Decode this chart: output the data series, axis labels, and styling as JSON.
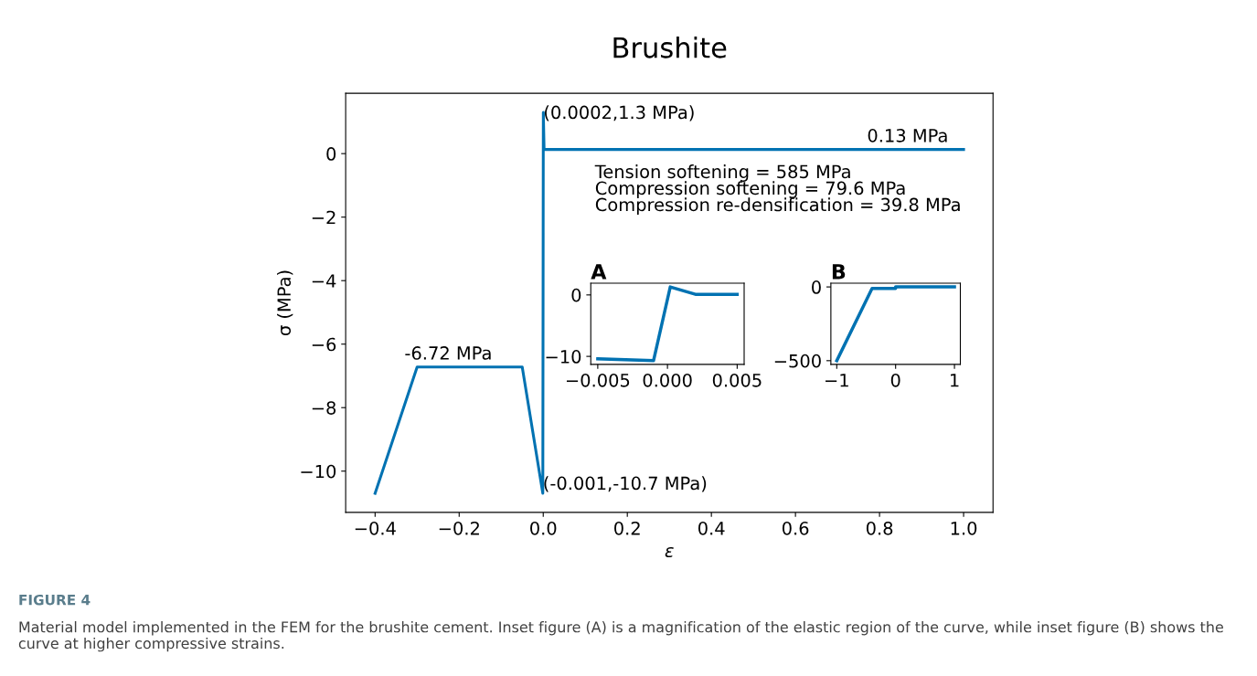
{
  "chart_data": [
    {
      "type": "line",
      "title": "Brushite",
      "xlabel": "ε",
      "ylabel": "σ (MPa)",
      "x": [
        -0.4,
        -0.3,
        -0.05,
        -0.001,
        0.0002,
        0.002,
        1.0
      ],
      "series": [
        {
          "color": "#0072b2",
          "values": [
            -10.7,
            -6.72,
            -6.72,
            -10.7,
            1.3,
            0.13,
            0.13
          ]
        }
      ],
      "xlim": [
        -0.47,
        1.07
      ],
      "ylim": [
        -11.3,
        1.9
      ],
      "xticks": [
        {
          "value": -0.4,
          "label": "−0.4"
        },
        {
          "value": -0.2,
          "label": "−0.2"
        },
        {
          "value": 0,
          "label": "0.0"
        },
        {
          "value": 0.2,
          "label": "0.2"
        },
        {
          "value": 0.4,
          "label": "0.4"
        },
        {
          "value": 0.6,
          "label": "0.6"
        },
        {
          "value": 0.8,
          "label": "0.8"
        },
        {
          "value": 1.0,
          "label": "1.0"
        }
      ],
      "yticks": [
        {
          "value": -10,
          "label": "−10"
        },
        {
          "value": -8,
          "label": "−8"
        },
        {
          "value": -6,
          "label": "−6"
        },
        {
          "value": -4,
          "label": "−4"
        },
        {
          "value": -2,
          "label": "−2"
        },
        0
      ],
      "grid": false,
      "legend": false,
      "annotations": [
        {
          "text": "(0.0002,1.3 MPa)",
          "x": 0.0002,
          "y": 1.3
        },
        {
          "text": "0.13 MPa",
          "x": 1.0,
          "y": 0.13
        },
        {
          "text": "-6.72 MPa",
          "x": -0.3,
          "y": -6.72
        },
        {
          "text": "(-0.001,-10.7 MPa)",
          "x": -0.001,
          "y": -10.7
        },
        "Tension softening = 585 MPa\nCompression softening = 79.6 MPa\nCompression re-densification = 39.8 MPa",
        "FIGURE 4",
        "Material model implemented in the FEM for the brushite cement. Inset figure (A) is a magnification of the elastic region of the curve, while inset figure (B) shows the curve at higher compressive strains."
      ]
    },
    {
      "type": "line",
      "title": "A",
      "x": [
        -0.005,
        -0.001,
        0.0002,
        0.002,
        0.005
      ],
      "series": [
        {
          "color": "#0072b2",
          "values": [
            -10.4,
            -10.7,
            1.3,
            0.1,
            0.1
          ]
        }
      ],
      "xlim": [
        -0.0055,
        0.0055
      ],
      "ylim": [
        -11.3,
        1.9
      ],
      "xticks": [
        {
          "value": -0.005,
          "label": "−0.005"
        },
        {
          "value": 0,
          "label": "0.000"
        },
        {
          "value": 0.005,
          "label": "0.005"
        }
      ],
      "yticks": [
        {
          "value": -10,
          "label": "−10"
        },
        0
      ]
    },
    {
      "type": "line",
      "title": "B",
      "x": [
        -1.0,
        -0.4,
        0,
        0,
        1.0
      ],
      "series": [
        {
          "color": "#0072b2",
          "values": [
            -500,
            -10,
            -10,
            0,
            0
          ]
        }
      ],
      "xlim": [
        -1.1,
        1.1
      ],
      "ylim": [
        -525,
        25
      ],
      "xticks": [
        {
          "value": -1,
          "label": "−1"
        },
        0,
        1
      ],
      "yticks": [
        {
          "value": -500,
          "label": "−500"
        },
        0
      ]
    }
  ]
}
